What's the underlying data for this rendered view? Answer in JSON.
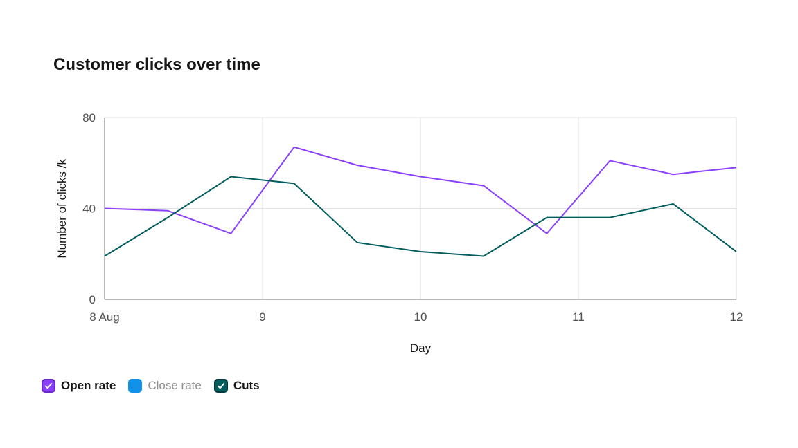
{
  "chart_data": {
    "type": "line",
    "title": "Customer clicks over time",
    "xlabel": "Day",
    "ylabel": "Number of clicks /k",
    "x": [
      8.0,
      8.4,
      8.8,
      9.2,
      9.6,
      10.0,
      10.4,
      10.8,
      11.2,
      11.6,
      12.0
    ],
    "x_ticks": [
      8,
      9,
      10,
      11,
      12
    ],
    "x_tick_labels": [
      "8 Aug",
      "9",
      "10",
      "11",
      "12"
    ],
    "ylim": [
      0,
      80
    ],
    "y_ticks": [
      0,
      40,
      80
    ],
    "grid": true,
    "legend_position": "bottom",
    "series": [
      {
        "name": "Open rate",
        "color": "#8a3ffc",
        "visible": true,
        "values": [
          40,
          39,
          29,
          67,
          59,
          54,
          50,
          29,
          61,
          55,
          58
        ]
      },
      {
        "name": "Close rate",
        "color": "#1192e8",
        "visible": false,
        "values": []
      },
      {
        "name": "Cuts",
        "color": "#005d5d",
        "visible": true,
        "values": [
          19,
          36,
          54,
          51,
          25,
          21,
          19,
          36,
          36,
          42,
          21
        ]
      }
    ]
  },
  "legend": {
    "items": [
      {
        "label": "Open rate",
        "color": "#8a3ffc",
        "border_color": "#6929c4",
        "checked": true
      },
      {
        "label": "Close rate",
        "color": "#1192e8",
        "border_color": "#1192e8",
        "checked": false
      },
      {
        "label": "Cuts",
        "color": "#005d5d",
        "border_color": "#00393d",
        "checked": true
      }
    ]
  },
  "colors": {
    "axis": "#6f6f6f",
    "grid": "#e0e0e0",
    "tick_text": "#525252",
    "text": "#161616",
    "title": "#161616"
  }
}
